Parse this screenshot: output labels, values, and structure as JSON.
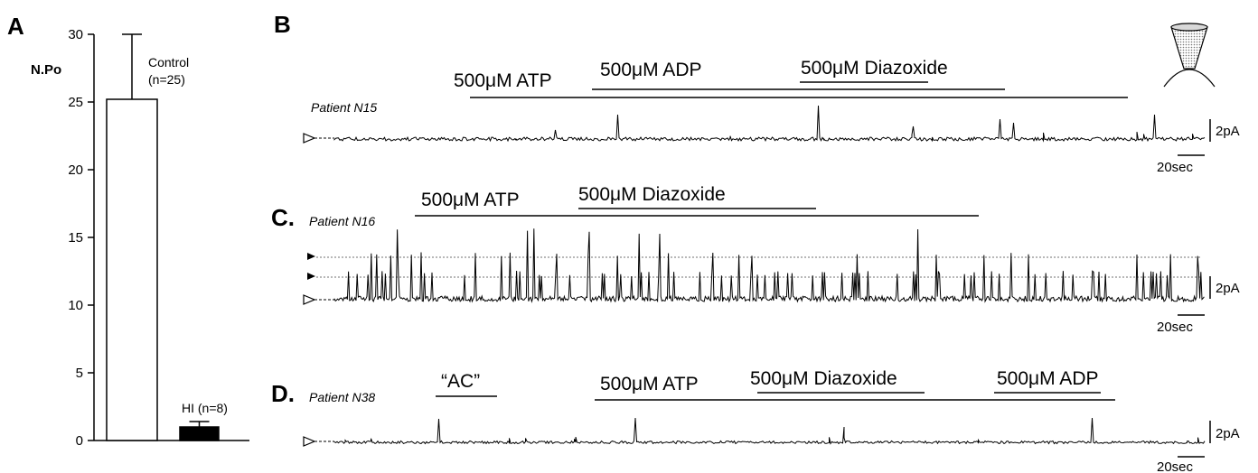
{
  "panels": {
    "a": {
      "letter": "A"
    },
    "b": {
      "letter": "B",
      "patient": "Patient N15",
      "bars": [
        "500μM ATP",
        "500μM ADP",
        "500μM Diazoxide"
      ]
    },
    "c": {
      "letter": "C.",
      "patient": "Patient N16",
      "bars": [
        "500μM ATP",
        "500μM Diazoxide"
      ]
    },
    "d": {
      "letter": "D.",
      "patient": "Patient N38",
      "bars": [
        "“AC”",
        "500μM ATP",
        "500μM Diazoxide",
        "500μM ADP"
      ]
    }
  },
  "scale_bar": {
    "current": "2pA",
    "time": "20sec"
  },
  "chart_data": {
    "type": "bar",
    "ylabel": "N.Po",
    "ylim": [
      0,
      30
    ],
    "yticks": [
      0,
      5,
      10,
      15,
      20,
      25,
      30
    ],
    "categories": [
      "Control",
      "HI"
    ],
    "category_labels": [
      "Control (n=25)",
      "HI (n=8)"
    ],
    "label_lines": [
      [
        "Control",
        "(n=25)"
      ],
      [
        "HI (n=8)"
      ]
    ],
    "values": [
      25.2,
      1.0
    ],
    "errors": [
      4.8,
      0.4
    ],
    "fills": [
      "#ffffff",
      "#000000"
    ]
  }
}
